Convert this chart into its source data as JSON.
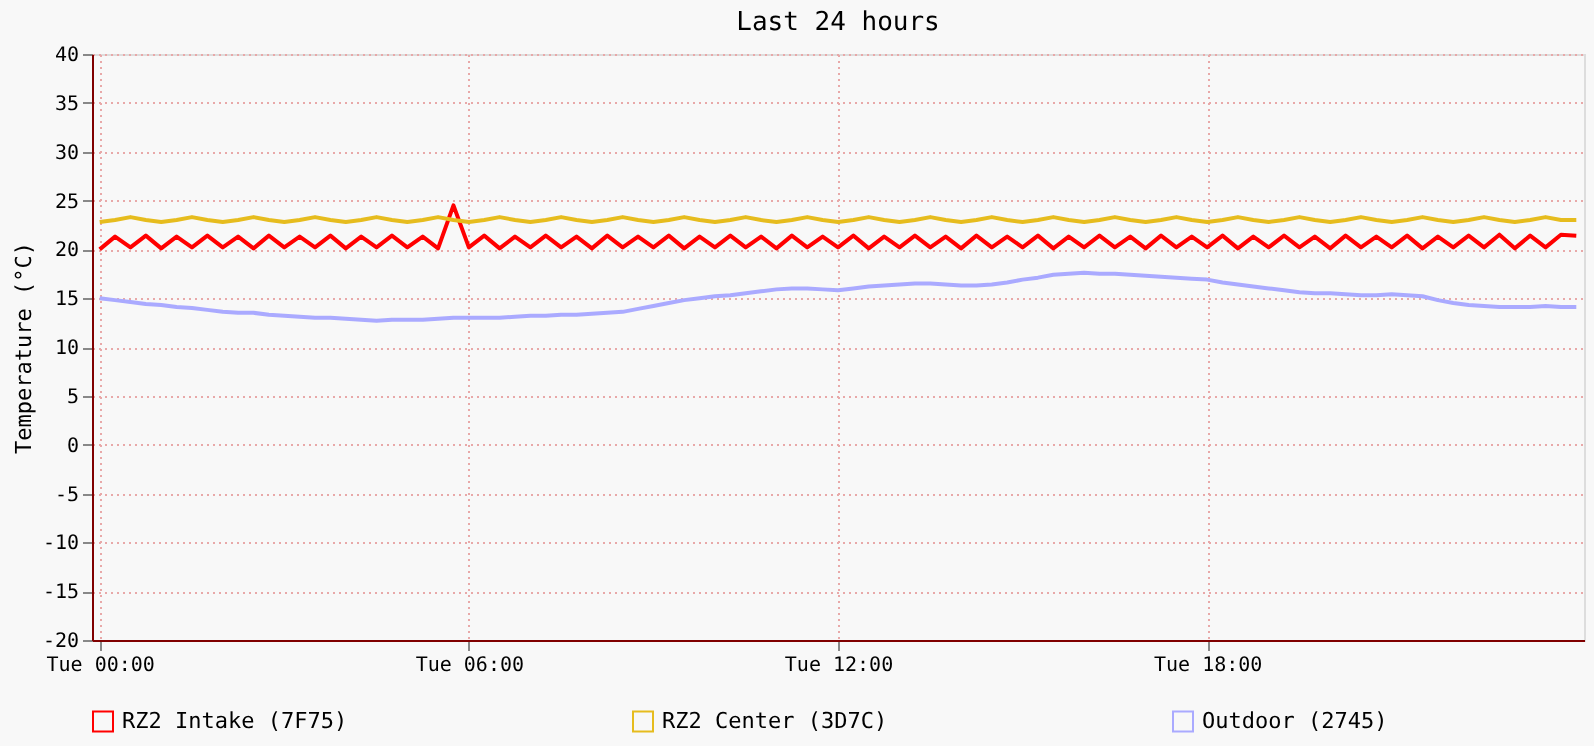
{
  "chart_data": {
    "type": "line",
    "title": "Last 24 hours",
    "ylabel": "Temperature (°C)",
    "categories": [
      "Tue 00:00",
      null,
      null,
      null,
      null,
      null,
      null,
      null,
      null,
      null,
      null,
      null,
      null,
      null,
      null,
      null,
      null,
      null,
      null,
      null,
      null,
      null,
      null,
      null,
      "Tue 06:00",
      null,
      null,
      null,
      null,
      null,
      null,
      null,
      null,
      null,
      null,
      null,
      null,
      null,
      null,
      null,
      null,
      null,
      null,
      null,
      null,
      null,
      null,
      null,
      "Tue 12:00",
      null,
      null,
      null,
      null,
      null,
      null,
      null,
      null,
      null,
      null,
      null,
      null,
      null,
      null,
      null,
      null,
      null,
      null,
      null,
      null,
      null,
      null,
      null,
      "Tue 18:00",
      null,
      null,
      null,
      null,
      null,
      null,
      null,
      null,
      null,
      null,
      null,
      null,
      null,
      null,
      null,
      null,
      null,
      null,
      null,
      null,
      null,
      null,
      null,
      null
    ],
    "ylim": [
      -20,
      40
    ],
    "yticks": [
      -20,
      -15,
      -10,
      -5,
      0,
      5,
      10,
      15,
      20,
      25,
      30,
      35,
      40
    ],
    "grid": true,
    "legend": "bottom",
    "marker": "none",
    "line_style": "solid",
    "series": [
      {
        "name": "RZ2 Intake (7F75)",
        "color": "#ff0000",
        "values": [
          20.0,
          21.3,
          20.2,
          21.4,
          20.1,
          21.3,
          20.2,
          21.4,
          20.2,
          21.3,
          20.1,
          21.4,
          20.2,
          21.3,
          20.2,
          21.4,
          20.1,
          21.3,
          20.2,
          21.4,
          20.2,
          21.3,
          20.1,
          24.5,
          20.2,
          21.4,
          20.1,
          21.3,
          20.2,
          21.4,
          20.2,
          21.3,
          20.1,
          21.4,
          20.2,
          21.3,
          20.2,
          21.4,
          20.1,
          21.3,
          20.2,
          21.4,
          20.2,
          21.3,
          20.1,
          21.4,
          20.2,
          21.3,
          20.2,
          21.4,
          20.1,
          21.3,
          20.2,
          21.4,
          20.2,
          21.3,
          20.1,
          21.4,
          20.2,
          21.3,
          20.2,
          21.4,
          20.1,
          21.3,
          20.2,
          21.4,
          20.2,
          21.3,
          20.1,
          21.4,
          20.2,
          21.3,
          20.2,
          21.4,
          20.1,
          21.3,
          20.2,
          21.4,
          20.2,
          21.3,
          20.1,
          21.4,
          20.2,
          21.3,
          20.2,
          21.4,
          20.1,
          21.3,
          20.2,
          21.4,
          20.2,
          21.5,
          20.1,
          21.4,
          20.2,
          21.5,
          21.4
        ]
      },
      {
        "name": "RZ2 Center (3D7C)",
        "color": "#e6bc1e",
        "values": [
          22.8,
          23.0,
          23.3,
          23.0,
          22.8,
          23.0,
          23.3,
          23.0,
          22.8,
          23.0,
          23.3,
          23.0,
          22.8,
          23.0,
          23.3,
          23.0,
          22.8,
          23.0,
          23.3,
          23.0,
          22.8,
          23.0,
          23.3,
          23.0,
          22.8,
          23.0,
          23.3,
          23.0,
          22.8,
          23.0,
          23.3,
          23.0,
          22.8,
          23.0,
          23.3,
          23.0,
          22.8,
          23.0,
          23.3,
          23.0,
          22.8,
          23.0,
          23.3,
          23.0,
          22.8,
          23.0,
          23.3,
          23.0,
          22.8,
          23.0,
          23.3,
          23.0,
          22.8,
          23.0,
          23.3,
          23.0,
          22.8,
          23.0,
          23.3,
          23.0,
          22.8,
          23.0,
          23.3,
          23.0,
          22.8,
          23.0,
          23.3,
          23.0,
          22.8,
          23.0,
          23.3,
          23.0,
          22.8,
          23.0,
          23.3,
          23.0,
          22.8,
          23.0,
          23.3,
          23.0,
          22.8,
          23.0,
          23.3,
          23.0,
          22.8,
          23.0,
          23.3,
          23.0,
          22.8,
          23.0,
          23.3,
          23.0,
          22.8,
          23.0,
          23.3,
          23.0,
          23.0
        ]
      },
      {
        "name": "Outdoor (2745)",
        "color": "#aaaaff",
        "values": [
          15.0,
          14.8,
          14.6,
          14.4,
          14.3,
          14.1,
          14.0,
          13.8,
          13.6,
          13.5,
          13.5,
          13.3,
          13.2,
          13.1,
          13.0,
          13.0,
          12.9,
          12.8,
          12.7,
          12.8,
          12.8,
          12.8,
          12.9,
          13.0,
          13.0,
          13.0,
          13.0,
          13.1,
          13.2,
          13.2,
          13.3,
          13.3,
          13.4,
          13.5,
          13.6,
          13.9,
          14.2,
          14.5,
          14.8,
          15.0,
          15.2,
          15.3,
          15.5,
          15.7,
          15.9,
          16.0,
          16.0,
          15.9,
          15.8,
          16.0,
          16.2,
          16.3,
          16.4,
          16.5,
          16.5,
          16.4,
          16.3,
          16.3,
          16.4,
          16.6,
          16.9,
          17.1,
          17.4,
          17.5,
          17.6,
          17.5,
          17.5,
          17.4,
          17.3,
          17.2,
          17.1,
          17.0,
          16.9,
          16.6,
          16.4,
          16.2,
          16.0,
          15.8,
          15.6,
          15.5,
          15.5,
          15.4,
          15.3,
          15.3,
          15.4,
          15.3,
          15.2,
          14.8,
          14.5,
          14.3,
          14.2,
          14.1,
          14.1,
          14.1,
          14.2,
          14.1,
          14.1
        ]
      }
    ]
  }
}
